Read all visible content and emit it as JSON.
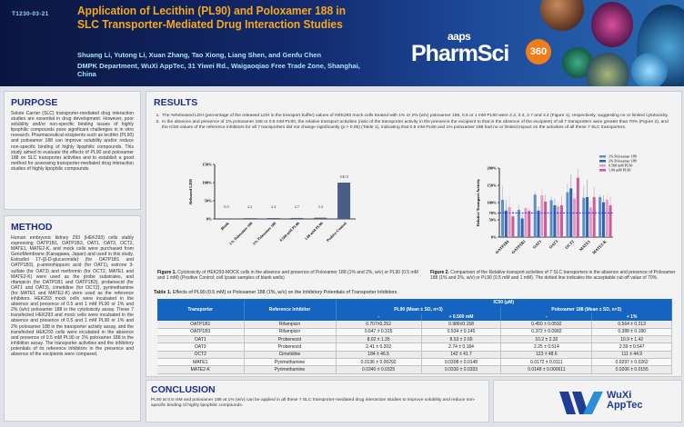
{
  "header": {
    "poster_id": "T1230-03-21",
    "title": "Application of Lecithin (PL90) and Poloxamer 188 in SLC Transporter-Mediated Drug Interaction Studies",
    "authors": "Shuang Li, Yutong Li, Xuan Zhang, Tao Xiong, Liang Shen, and Genfu Chen",
    "affiliation": "DMPK Department, WuXi AppTec, 31 Yiwei Rd., Waigaoqiao Free Trade Zone, Shanghai, China",
    "conference_logo": {
      "top": "aaps",
      "main": "PharmSci",
      "badge": "360"
    },
    "colors": {
      "title": "#f6a81e",
      "authors": "#a5e4f7",
      "background": "#0a1640"
    }
  },
  "purpose": {
    "heading": "PURPOSE",
    "text": "Solute Carrier (SLC) transporter-mediated drug interaction studies are essential in drug development. However, poor solubility and/or non-specific binding issues of highly lipophilic compounds pose significant challenges in in vitro research. Pharmaceutical excipients such as lecithin (PL90) and poloxamer 188 can improve solubility and/or reduce non-specific binding of highly lipophilic compounds. This study aimed to evaluate the effects of PL90 and poloxamer 188 on SLC transporter activities and to establish a good method for assessing transporter-mediated drug interaction studies of highly lipophilic compounds."
  },
  "method": {
    "heading": "METHOD",
    "text": "Human embryonic kidney 293 (HEK293) cells stably expressing OATP1B1, OATP1B3, OAT1, OAT3, OCT2, MATE1, MATE2-K, and mock cells were purchased from GenoMembrane (Kanagawa, Japan) and used in this study. Estradiol 17-(β-D-glucuronide) (for OATP1B1 and OATP1B3), p-aminohippuric acid (for OAT1), estrone 3-sulfate (for OAT3) and metformin (for OCT2, MATE1 and MATE2-K) were used as the probe substrates, and rifampicin (for OATP1B1 and OATP1B3), probenecid (for OAT1 and OAT3), cimetidine (for OCT2), pyrimethamine (for MATE1 and MATE2-K) were used as the reference inhibitors. HEK293 mock cells were incubated in the absence and presence of 0.5 and 1 mM PL90 or 1% and 2% (w/v) poloxamer 188 in the cytotoxicity assay. These 7 transfected HEK293 and mock cells were incubated in the absence and presence of 0.5 and 1 mM PL90 or 1% and 2% poloxamer 188 in the transporter activity assay, and the transfected HEK293 cells were incubated in the absence and presence of 0.5 mM PL90 or 1% poloxamer 188 in the inhibition assay. The transporter activities and the inhibitory potentials of its reference inhibitors in the presence and absence of the excipients were compared."
  },
  "results": {
    "heading": "RESULTS",
    "items": [
      "The %Released LDH (percentage of the released LDH in the transport buffer) values of HEK293 mock cells treated with 1% or 2% (w/v) poloxamer 188, 0.5 or 1 mM PL90 were 2.2, 2.4, 2.7 and 3.4 (Figure 1), respectively, suggesting no or limited cytotoxicity.",
      "In the absence and presence of 1% poloxamer 188 or 0.5 mM PL90, the relative transport activities (ratio of the transporter activity in the presence the excipient to that in the absence of the excipient) of all 7 transporters were greater than 70% (Figure 2), and the IC50 values of the reference inhibitors for all 7 transporters did not change significantly (p > 0.05) (Table 1), indicating that 0.5 mM PL90 and 1% poloxamer 188 had no or limited impact on the activities of all these 7 SLC transporters."
    ],
    "figure1_caption_label": "Figure 1.",
    "figure1_caption": "Cytotoxicity of HEK293-MOCK cells in the absence and presence of Poloxamer 188 (1% and 2%, w/v) or PL90 (0.5 mM and 1 mM) (Positive Control: cell lysate samples of blank wells)",
    "figure2_caption_label": "Figure 2.",
    "figure2_caption": "Comparison of the Relative transport activities of 7 SLC transporters in the absence and presence of Poloxamer 188 (1% and 2%, w/v) or PL90 (0.5 mM and 1 mM). The dotted line indicates the acceptable cut-off value of 70%.",
    "table_title_label": "Table 1.",
    "table_title": "Effects of PL90 (0.5 mM) or Poloxamer 188 (1%, w/v) on the Inhibitory Potentials of Transporter Inhibitors",
    "table": {
      "col_transporter": "Transporter",
      "col_inhibitor": "Reference Inhibitor",
      "ic50_header": "IC50 (μM)",
      "pl90_header": "PL90 (Mean ± SD, n=3)",
      "p188_header": "Poloxamer 188 (Mean ± SD, n=3)",
      "sub_headers": [
        "-",
        "+ 0.500 mM",
        "-",
        "+ 1%"
      ],
      "rows": [
        [
          "OATP1B1",
          "Rifampicin",
          "0.707±0.252",
          "0.986±0.158",
          "0.450 ± 0.0592",
          "0.564 ± 0.213"
        ],
        [
          "OATP1B3",
          "Rifampicin",
          "0.647 ± 0.315",
          "0.534 ± 0.145",
          "0.372 ± 0.0982",
          "0.388 ± 0.180"
        ],
        [
          "OAT1",
          "Probenecid",
          "8.02 ± 1.35",
          "8.53 ± 2.65",
          "10.2 ± 2.32",
          "10.9 ± 1.42"
        ],
        [
          "OAT3",
          "Probenecid",
          "2.41 ± 0.202",
          "2.74 ± 0.184",
          "2.25 ± 0.514",
          "2.39 ± 0.547"
        ],
        [
          "OCT2",
          "Cimetidine",
          "184 ± 46.5",
          "142 ± 41.7",
          "123 ± 48.6",
          "111 ± 44.9"
        ],
        [
          "MATE1",
          "Pyrimethamine",
          "0.0136 ± 0.00292",
          "0.0308 ± 0.0148",
          "0.0172 ± 0.0111",
          "0.0297 ± 0.0262"
        ],
        [
          "MATE2-K",
          "Pyrimethamine",
          "0.0340 ± 0.0325",
          "0.0330 ± 0.0333",
          "0.0148 ± 0.000611",
          "0.0206 ± 0.0155"
        ]
      ]
    }
  },
  "conclusion": {
    "heading": "CONCLUSION",
    "text": "PL90 at 0.5 mM and poloxamer 188 at 1% (w/v) can be applied in all these 7 SLC transporter-mediated drug interaction studies to improve solubility and reduce non-specific binding of highly lipophilic compounds."
  },
  "company_logo": {
    "line1": "WuXi",
    "line2": "AppTec",
    "colors": {
      "mark": "#1f3c96",
      "accent": "#2a8fd6"
    }
  },
  "chart_data": [
    {
      "type": "bar",
      "title": "",
      "ylabel": "Released LDH",
      "categories": [
        "Blank",
        "1% Poloxamer 188",
        "2% Poloxamer 188",
        "0.500 mM PL90",
        "1.00 mM PL90",
        "Positive Control"
      ],
      "values": [
        0.0,
        2.2,
        2.4,
        2.7,
        3.4,
        100.0
      ],
      "data_labels": [
        "0.0",
        "2.2",
        "2.4",
        "2.7",
        "3.4",
        "100.0"
      ],
      "ylim": [
        0,
        150
      ],
      "yticks": [
        "0%",
        "50%",
        "100%",
        "150%"
      ],
      "color": "#4a5f88",
      "grid": false
    },
    {
      "type": "bar",
      "title": "",
      "ylabel": "Relative Transport Activity",
      "categories": [
        "OATP1B1",
        "OATP1B3",
        "OAT1",
        "OAT3",
        "OCT2",
        "MATE1",
        "MATE2-K"
      ],
      "series": [
        {
          "name": "1% Poloxamer 188",
          "color": "#5b8fcc",
          "values": [
            108,
            79,
            123,
            107,
            130,
            114,
            116
          ],
          "sd": [
            40,
            15,
            8,
            12,
            25,
            35,
            8
          ]
        },
        {
          "name": "2% Poloxamer 188",
          "color": "#2e63b0",
          "values": [
            77,
            54,
            77,
            92,
            141,
            116,
            101
          ],
          "sd": [
            30,
            12,
            12,
            20,
            40,
            50,
            20
          ]
        },
        {
          "name": "0.500 mM PL90",
          "color": "#e39ac2",
          "values": [
            87,
            84,
            121,
            89,
            112,
            86,
            108
          ],
          "sd": [
            35,
            5,
            20,
            12,
            15,
            20,
            15
          ]
        },
        {
          "name": "1.00 mM PL90",
          "color": "#c95b98",
          "values": [
            60,
            76,
            103,
            92,
            172,
            116,
            92
          ],
          "sd": [
            18,
            8,
            20,
            25,
            25,
            30,
            25
          ]
        }
      ],
      "ylim": [
        0,
        200
      ],
      "yticks": [
        "0%",
        "50%",
        "70%",
        "100%",
        "150%",
        "200%"
      ],
      "reference_line": {
        "value": 70,
        "style": "dotted",
        "color": "#2b2bff"
      },
      "legend": "top-right",
      "grid": false
    }
  ]
}
